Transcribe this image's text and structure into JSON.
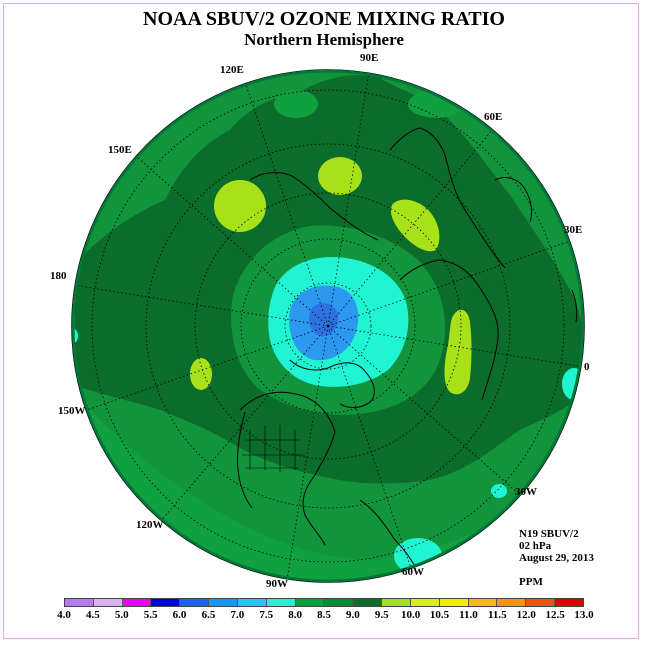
{
  "title": "NOAA SBUV/2 OZONE MIXING RATIO",
  "subtitle": "Northern Hemisphere",
  "info": {
    "satellite": "N19 SBUV/2",
    "pressure": "02 hPa",
    "date": "August 29, 2013",
    "units": "PPM"
  },
  "longitude_labels": [
    "90E",
    "60E",
    "30E",
    "0",
    "30W",
    "60W",
    "90W",
    "120W",
    "150W",
    "180",
    "150E",
    "120E"
  ],
  "colors": {
    "background_field": "#12943c",
    "dark_band": "#0b6c2c",
    "light_band": "#10a040",
    "lime": "#a8e01a",
    "cyan": "#20f4d2",
    "blue_core": "#2c98f0",
    "blue_center": "#2c72e0",
    "ring": "#007838"
  },
  "legend": {
    "labels": [
      "4.0",
      "4.5",
      "5.0",
      "5.5",
      "6.0",
      "6.5",
      "7.0",
      "7.5",
      "8.0",
      "8.5",
      "9.0",
      "9.5",
      "10.0",
      "10.5",
      "11.0",
      "11.5",
      "12.0",
      "12.5",
      "13.0"
    ],
    "colors": [
      "#b57cf0",
      "#d9b2f2",
      "#ee00ee",
      "#0000dc",
      "#1e64e6",
      "#1e96f0",
      "#28c2f0",
      "#20f4d2",
      "#0aa040",
      "#0a8a36",
      "#0b6c2c",
      "#a4e01a",
      "#d6f012",
      "#f0f000",
      "#f0be10",
      "#f09614",
      "#f05014",
      "#e60000",
      "#8b5a3c"
    ]
  }
}
